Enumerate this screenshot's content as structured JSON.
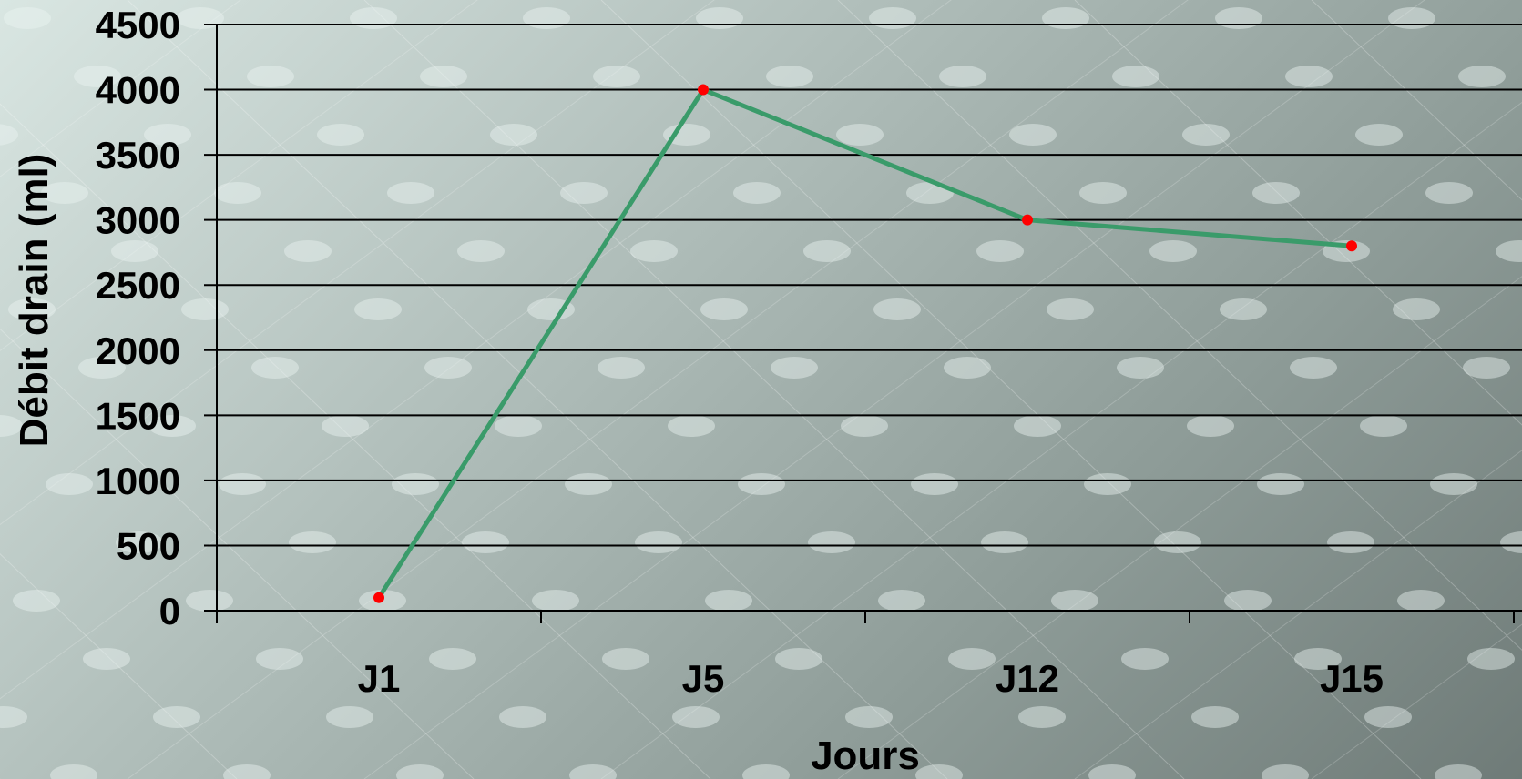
{
  "colors": {
    "line": "#3a9b6a",
    "marker": "#ff0000",
    "grid": "#000000"
  },
  "chart_data": {
    "type": "line",
    "categories": [
      "J1",
      "J5",
      "J12",
      "J15"
    ],
    "series": [
      {
        "values": [
          100,
          4000,
          3000,
          2800
        ]
      }
    ],
    "xlabel": "Jours",
    "ylabel": "Débit drain (ml)",
    "ylim": [
      0,
      4500
    ],
    "yticks": [
      0,
      500,
      1000,
      1500,
      2000,
      2500,
      3000,
      3500,
      4000,
      4500
    ],
    "grid": true,
    "legend": "none"
  }
}
